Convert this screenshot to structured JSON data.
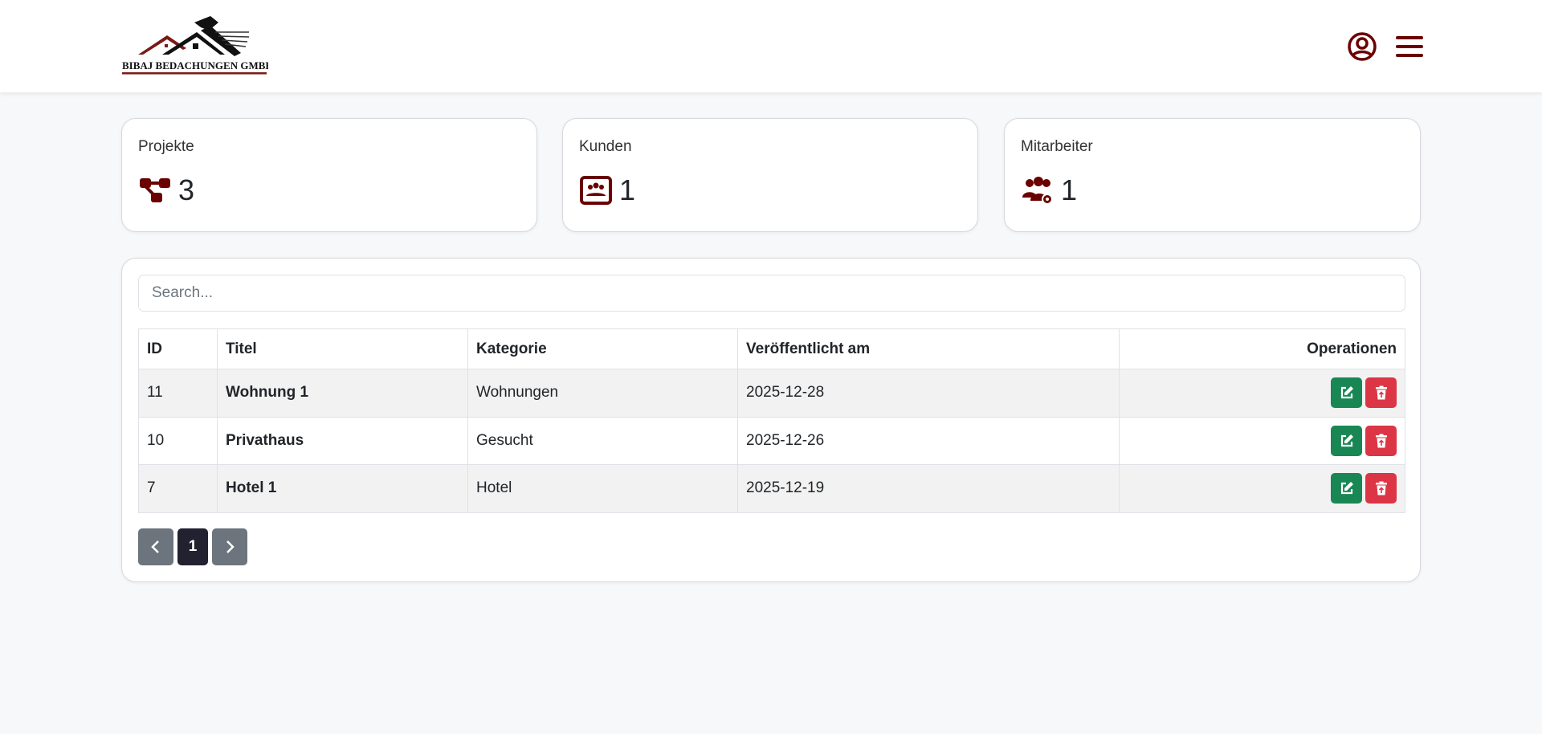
{
  "header": {
    "logo_text": "Bibaj Bedachungen GmbH",
    "user_icon": "user-circle-icon",
    "menu_icon": "hamburger-menu-icon"
  },
  "stats": [
    {
      "label": "Projekte",
      "value": "3",
      "icon": "project-diagram-icon"
    },
    {
      "label": "Kunden",
      "value": "1",
      "icon": "customers-board-icon"
    },
    {
      "label": "Mitarbeiter",
      "value": "1",
      "icon": "users-gear-icon"
    }
  ],
  "colors": {
    "brand": "#6b0000",
    "edit": "#198754",
    "delete": "#dc3545",
    "active_page": "#212130",
    "page_nav": "#6c757d"
  },
  "search": {
    "placeholder": "Search...",
    "value": ""
  },
  "table": {
    "headers": [
      "ID",
      "Titel",
      "Kategorie",
      "Veröffentlicht am",
      "Operationen"
    ],
    "rows": [
      {
        "id": "11",
        "title": "Wohnung 1",
        "category": "Wohnungen",
        "date": "2025-12-28"
      },
      {
        "id": "10",
        "title": "Privathaus",
        "category": "Gesucht",
        "date": "2025-12-26"
      },
      {
        "id": "7",
        "title": "Hotel 1",
        "category": "Hotel",
        "date": "2025-12-19"
      }
    ]
  },
  "pagination": {
    "current": "1"
  }
}
